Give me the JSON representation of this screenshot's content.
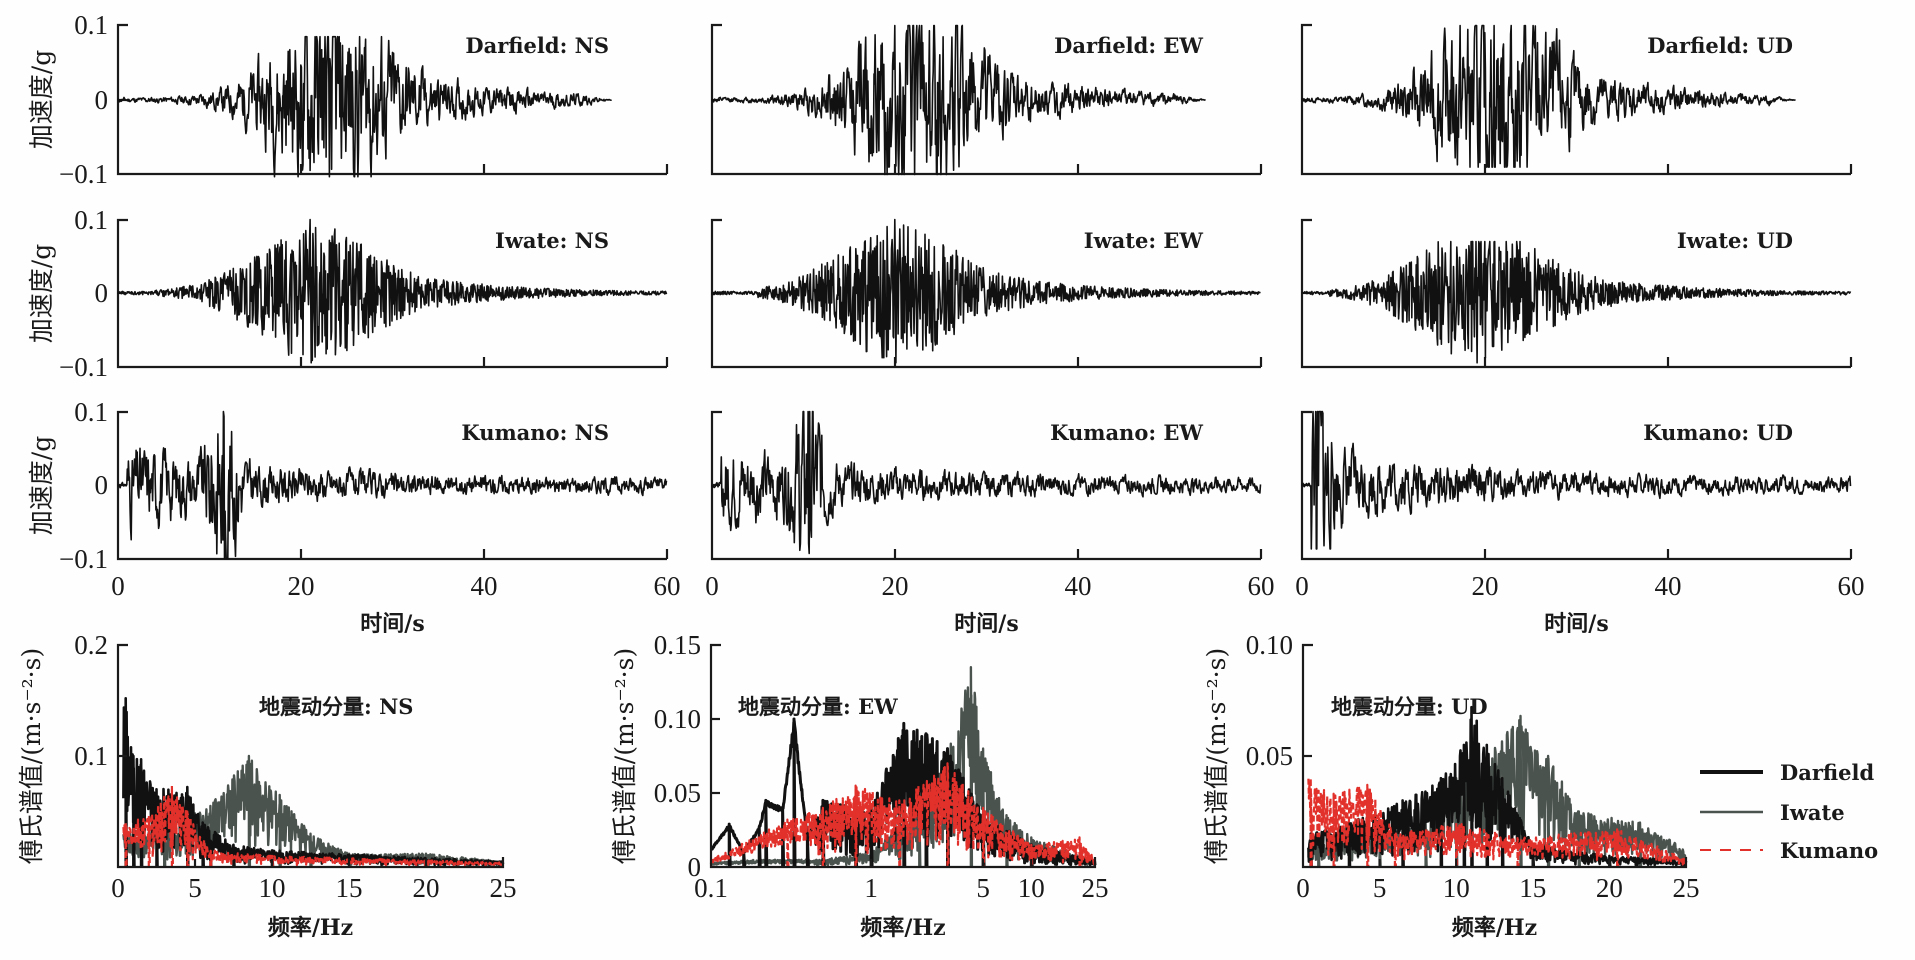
{
  "chart_data": [
    {
      "type": "line",
      "group": "acceleration-time-histories",
      "ylabel": "加速度/g",
      "xlabel": "时间/s",
      "xlim": [
        0,
        60
      ],
      "ylim": [
        -0.1,
        0.1
      ],
      "xticks": [
        0,
        20,
        40,
        60
      ],
      "xtick_labels": [
        "0",
        "20",
        "40",
        "60"
      ],
      "yticks": [
        -0.1,
        0,
        0.1
      ],
      "ytick_labels": [
        "−0.1",
        "0",
        "0.1"
      ],
      "grid": false,
      "panels": [
        {
          "id": "darfield-ns",
          "title": "Darfield: NS",
          "record": "Darfield",
          "component": "NS",
          "row": 0,
          "col": 0,
          "duration_s": 54,
          "pga_pos": 0.085,
          "pga_neg": -0.103,
          "t_peak": 23,
          "onset_s": 3,
          "envelope": "build-up",
          "seed": 11
        },
        {
          "id": "darfield-ew",
          "title": "Darfield: EW",
          "record": "Darfield",
          "component": "EW",
          "row": 0,
          "col": 1,
          "duration_s": 54,
          "pga_pos": 0.1,
          "pga_neg": -0.1,
          "t_peak": 22,
          "onset_s": 4,
          "envelope": "build-up",
          "seed": 12
        },
        {
          "id": "darfield-ud",
          "title": "Darfield: UD",
          "record": "Darfield",
          "component": "UD",
          "row": 0,
          "col": 2,
          "duration_s": 54,
          "pga_pos": 0.1,
          "pga_neg": -0.09,
          "t_peak": 21,
          "onset_s": 3,
          "envelope": "build-up",
          "seed": 13
        },
        {
          "id": "iwate-ns",
          "title": "Iwate: NS",
          "record": "Iwate",
          "component": "NS",
          "row": 1,
          "col": 0,
          "duration_s": 60,
          "pga_pos": 0.1,
          "pga_neg": -0.095,
          "t_peak": 21,
          "onset_s": 4,
          "envelope": "dense",
          "seed": 21
        },
        {
          "id": "iwate-ew",
          "title": "Iwate: EW",
          "record": "Iwate",
          "component": "EW",
          "row": 1,
          "col": 1,
          "duration_s": 60,
          "pga_pos": 0.1,
          "pga_neg": -0.095,
          "t_peak": 20,
          "onset_s": 5,
          "envelope": "dense",
          "seed": 22
        },
        {
          "id": "iwate-ud",
          "title": "Iwate: UD",
          "record": "Iwate",
          "component": "UD",
          "row": 1,
          "col": 2,
          "duration_s": 60,
          "pga_pos": 0.07,
          "pga_neg": -0.095,
          "t_peak": 19,
          "onset_s": 3,
          "envelope": "dense",
          "seed": 23
        },
        {
          "id": "kumano-ns",
          "title": "Kumano: NS",
          "record": "Kumano",
          "component": "NS",
          "row": 2,
          "col": 0,
          "duration_s": 60,
          "pga_pos": 0.1,
          "pga_neg": -0.1,
          "t_peak": 11.5,
          "onset_s": 1,
          "envelope": "early",
          "seed": 31
        },
        {
          "id": "kumano-ew",
          "title": "Kumano: EW",
          "record": "Kumano",
          "component": "EW",
          "row": 2,
          "col": 1,
          "duration_s": 60,
          "pga_pos": 0.1,
          "pga_neg": -0.093,
          "t_peak": 10.5,
          "onset_s": 1,
          "envelope": "early",
          "seed": 32
        },
        {
          "id": "kumano-ud",
          "title": "Kumano: UD",
          "record": "Kumano",
          "component": "UD",
          "row": 2,
          "col": 2,
          "duration_s": 60,
          "pga_pos": 0.1,
          "pga_neg": -0.087,
          "t_peak": 1.5,
          "onset_s": 1,
          "envelope": "early",
          "seed": 33
        }
      ]
    },
    {
      "type": "line",
      "group": "fourier-spectra",
      "ylabel": "傅氏谱值/(m·s⁻²·s)",
      "xlabel": "频率/Hz",
      "legend": {
        "position": "right",
        "entries": [
          {
            "name": "Darfield",
            "color": "#111111",
            "style": "solid-thick"
          },
          {
            "name": "Iwate",
            "color": "#4b534e",
            "style": "solid"
          },
          {
            "name": "Kumano",
            "color": "#e2302b",
            "style": "dashed"
          }
        ]
      },
      "grid": false,
      "panels": [
        {
          "id": "fs-ns",
          "title": "地震动分量: NS",
          "component": "NS",
          "xscale": "linear",
          "xlim": [
            0,
            25
          ],
          "ylim": [
            0,
            0.2
          ],
          "xticks": [
            0,
            5,
            10,
            15,
            20,
            25
          ],
          "xtick_labels": [
            "0",
            "5",
            "10",
            "15",
            "20",
            "25"
          ],
          "yticks": [
            0.1,
            0.2
          ],
          "ytick_labels": [
            "0.1",
            "0.2"
          ],
          "series": [
            {
              "name": "Darfield",
              "peaks": [
                [
                  0.5,
                  0.152
                ],
                [
                  1.0,
                  0.1
                ],
                [
                  1.5,
                  0.097
                ],
                [
                  2.5,
                  0.07
                ],
                [
                  4.5,
                  0.072
                ],
                [
                  5.5,
                  0.04
                ],
                [
                  7.5,
                  0.02
                ],
                [
                  10,
                  0.015
                ],
                [
                  25,
                  0.005
                ]
              ],
              "seed": 101
            },
            {
              "name": "Iwate",
              "peaks": [
                [
                  1,
                  0.03
                ],
                [
                  3,
                  0.035
                ],
                [
                  6,
                  0.055
                ],
                [
                  8.5,
                  0.1
                ],
                [
                  10.5,
                  0.065
                ],
                [
                  12.5,
                  0.03
                ],
                [
                  15,
                  0.012
                ],
                [
                  20,
                  0.012
                ],
                [
                  25,
                  0.005
                ]
              ],
              "seed": 102
            },
            {
              "name": "Kumano",
              "peaks": [
                [
                  0.5,
                  0.04
                ],
                [
                  2,
                  0.045
                ],
                [
                  3.5,
                  0.073
                ],
                [
                  4.5,
                  0.05
                ],
                [
                  6,
                  0.015
                ],
                [
                  10,
                  0.01
                ],
                [
                  25,
                  0.004
                ]
              ],
              "seed": 103
            }
          ]
        },
        {
          "id": "fs-ew",
          "title": "地震动分量: EW",
          "component": "EW",
          "xscale": "log",
          "xlim": [
            0.1,
            25
          ],
          "ylim": [
            0,
            0.15
          ],
          "xticks": [
            0.1,
            1,
            5,
            10,
            25
          ],
          "xtick_labels": [
            "0.1",
            "1",
            "5",
            "10",
            "25"
          ],
          "yticks": [
            0,
            0.05,
            0.1,
            0.15
          ],
          "ytick_labels": [
            "0",
            "0.05",
            "0.10",
            "0.15"
          ],
          "series": [
            {
              "name": "Darfield",
              "peaks": [
                [
                  0.1,
                  0.012
                ],
                [
                  0.13,
                  0.029
                ],
                [
                  0.16,
                  0.01
                ],
                [
                  0.2,
                  0.027
                ],
                [
                  0.22,
                  0.045
                ],
                [
                  0.28,
                  0.04
                ],
                [
                  0.33,
                  0.1
                ],
                [
                  0.4,
                  0.02
                ],
                [
                  0.5,
                  0.045
                ],
                [
                  0.8,
                  0.04
                ],
                [
                  1.0,
                  0.04
                ],
                [
                  1.6,
                  0.097
                ],
                [
                  2.2,
                  0.09
                ],
                [
                  3,
                  0.08
                ],
                [
                  5,
                  0.035
                ],
                [
                  10,
                  0.015
                ],
                [
                  25,
                  0.004
                ]
              ],
              "seed": 201
            },
            {
              "name": "Iwate",
              "peaks": [
                [
                  0.1,
                  0.003
                ],
                [
                  0.2,
                  0.005
                ],
                [
                  0.5,
                  0.005
                ],
                [
                  1,
                  0.01
                ],
                [
                  2,
                  0.04
                ],
                [
                  3,
                  0.08
                ],
                [
                  4.2,
                  0.135
                ],
                [
                  5,
                  0.08
                ],
                [
                  7,
                  0.035
                ],
                [
                  10,
                  0.02
                ],
                [
                  25,
                  0.003
                ]
              ],
              "seed": 202
            },
            {
              "name": "Kumano",
              "peaks": [
                [
                  0.1,
                  0.005
                ],
                [
                  0.3,
                  0.032
                ],
                [
                  0.5,
                  0.04
                ],
                [
                  0.8,
                  0.055
                ],
                [
                  1.5,
                  0.045
                ],
                [
                  3,
                  0.07
                ],
                [
                  5,
                  0.04
                ],
                [
                  10,
                  0.015
                ],
                [
                  20,
                  0.02
                ],
                [
                  25,
                  0.005
                ]
              ],
              "seed": 203
            }
          ]
        },
        {
          "id": "fs-ud",
          "title": "地震动分量: UD",
          "component": "UD",
          "xscale": "linear",
          "xlim": [
            0,
            25
          ],
          "ylim": [
            0,
            0.1
          ],
          "xticks": [
            0,
            5,
            10,
            15,
            20,
            25
          ],
          "xtick_labels": [
            "0",
            "5",
            "10",
            "15",
            "20",
            "25"
          ],
          "yticks": [
            0.05,
            0.1
          ],
          "ytick_labels": [
            "0.05",
            "0.10"
          ],
          "series": [
            {
              "name": "Darfield",
              "peaks": [
                [
                  0.5,
                  0.015
                ],
                [
                  3,
                  0.02
                ],
                [
                  6.5,
                  0.03
                ],
                [
                  9,
                  0.04
                ],
                [
                  10.5,
                  0.055
                ],
                [
                  11,
                  0.072
                ],
                [
                  12,
                  0.055
                ],
                [
                  13,
                  0.04
                ],
                [
                  15,
                  0.01
                ],
                [
                  20,
                  0.005
                ],
                [
                  25,
                  0.003
                ]
              ],
              "seed": 301
            },
            {
              "name": "Iwate",
              "peaks": [
                [
                  1,
                  0.01
                ],
                [
                  5,
                  0.015
                ],
                [
                  8,
                  0.02
                ],
                [
                  10,
                  0.04
                ],
                [
                  12,
                  0.05
                ],
                [
                  14.2,
                  0.068
                ],
                [
                  16,
                  0.05
                ],
                [
                  18,
                  0.025
                ],
                [
                  22,
                  0.02
                ],
                [
                  25,
                  0.008
                ]
              ],
              "seed": 302
            },
            {
              "name": "Kumano",
              "peaks": [
                [
                  0.5,
                  0.04
                ],
                [
                  2,
                  0.033
                ],
                [
                  4.2,
                  0.037
                ],
                [
                  6,
                  0.015
                ],
                [
                  10,
                  0.02
                ],
                [
                  14,
                  0.013
                ],
                [
                  20.5,
                  0.017
                ],
                [
                  25,
                  0.004
                ]
              ],
              "seed": 303
            }
          ]
        }
      ]
    }
  ],
  "legend_labels": {
    "darfield": "Darfield",
    "iwate": "Iwate",
    "kumano": "Kumano"
  }
}
